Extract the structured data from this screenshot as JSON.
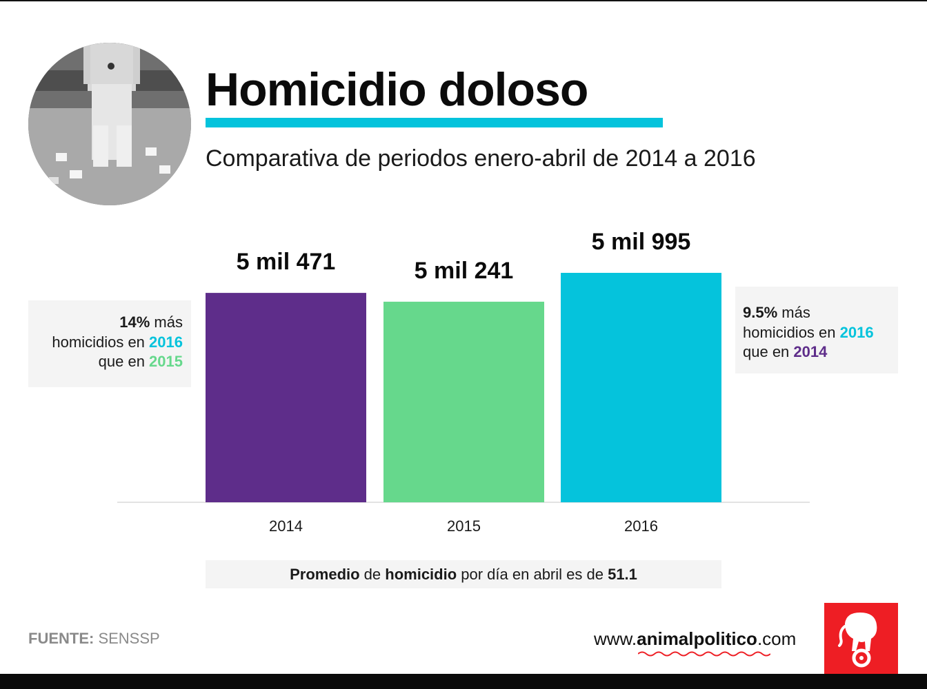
{
  "header": {
    "title": "Homicidio doloso",
    "subtitle": "Comparativa de periodos enero-abril de 2014 a 2016"
  },
  "chart_data": {
    "type": "bar",
    "categories": [
      "2014",
      "2015",
      "2016"
    ],
    "values": [
      5471,
      5241,
      5995
    ],
    "value_labels": [
      "5 mil 471",
      "5 mil 241",
      "5 mil 995"
    ],
    "colors": [
      "#5e2d8a",
      "#66d88c",
      "#05c3dc"
    ],
    "grid": false,
    "title": "",
    "xlabel": "",
    "ylabel": ""
  },
  "notes": {
    "left": {
      "pct": "14%",
      "t1": " más",
      "t2": "homicidios en ",
      "year_a": "2016",
      "t3": "que en ",
      "year_b": "2015"
    },
    "right": {
      "pct": "9.5%",
      "t1": " más",
      "t2": "homicidios en ",
      "year_a": "2016",
      "t3": "que en ",
      "year_b": "2014"
    }
  },
  "average": {
    "w1": "Promedio",
    "w2": " de ",
    "w3": "homicidio",
    "w4": " por día en abril es de ",
    "w5": "51.1"
  },
  "footer": {
    "source_label": "FUENTE:",
    "source_value": " SENSSP",
    "site_prefix": "www.",
    "site_bold": "animalpolitico",
    "site_suffix": ".com"
  },
  "colors": {
    "accent_cyan": "#05c3dc",
    "purple": "#5e2d8a",
    "green": "#66d88c",
    "brand_red": "#ee1e24",
    "note_bg": "#f4f4f4"
  },
  "icons": {
    "photo": "crime-scene-photo",
    "logo": "elephant-logo-icon"
  }
}
